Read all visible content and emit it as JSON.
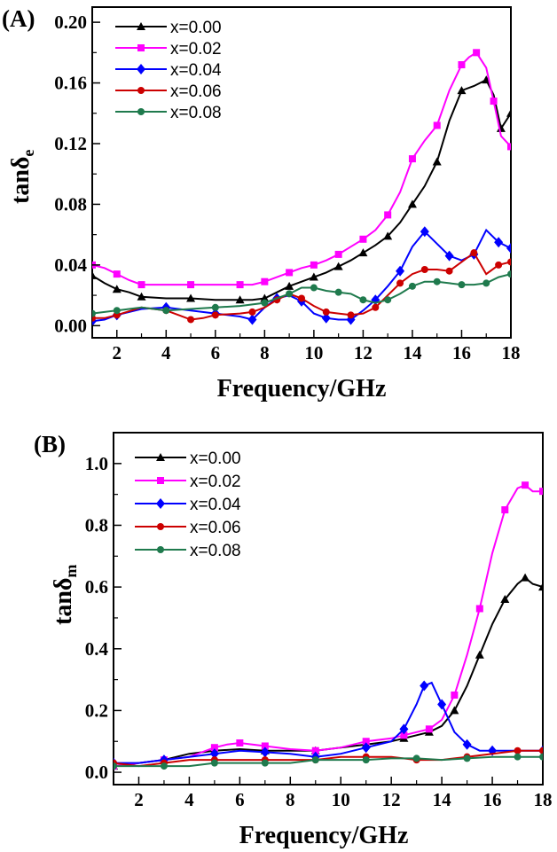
{
  "chart_data": [
    {
      "type": "line",
      "panel_label": "(A)",
      "xlabel": "Frequency/GHz",
      "ylabel_main": "tanδ",
      "ylabel_sub": "e",
      "xlim": [
        1,
        18
      ],
      "ylim": [
        -0.008,
        0.21
      ],
      "xticks": [
        2,
        4,
        6,
        8,
        10,
        12,
        14,
        16,
        18
      ],
      "yticks": [
        0.0,
        0.04,
        0.08,
        0.12,
        0.16,
        0.2
      ],
      "ytick_labels": [
        "0.00",
        "0.04",
        "0.08",
        "0.12",
        "0.16",
        "0.20"
      ],
      "legend_position": "top-left",
      "series": [
        {
          "name": "x=0.00",
          "color": "#000000",
          "marker": "triangle",
          "x": [
            1,
            1.5,
            2,
            2.5,
            3,
            4,
            5,
            6,
            7,
            7.5,
            8,
            8.5,
            9,
            9.5,
            10,
            10.5,
            11,
            11.5,
            12,
            12.5,
            13,
            13.5,
            14,
            14.5,
            15,
            15.5,
            16,
            16.5,
            17,
            17.3,
            17.6,
            18
          ],
          "y": [
            0.033,
            0.028,
            0.024,
            0.022,
            0.019,
            0.018,
            0.018,
            0.017,
            0.017,
            0.017,
            0.018,
            0.022,
            0.026,
            0.029,
            0.032,
            0.035,
            0.039,
            0.043,
            0.048,
            0.053,
            0.059,
            0.068,
            0.08,
            0.092,
            0.108,
            0.135,
            0.155,
            0.158,
            0.162,
            0.152,
            0.13,
            0.14
          ]
        },
        {
          "name": "x=0.02",
          "color": "#ff00ff",
          "marker": "square",
          "x": [
            1,
            1.5,
            2,
            2.5,
            3,
            4,
            5,
            6,
            7,
            7.5,
            8,
            8.5,
            9,
            9.5,
            10,
            10.5,
            11,
            11.5,
            12,
            12.5,
            13,
            13.5,
            14,
            14.5,
            15,
            15.5,
            16,
            16.3,
            16.6,
            17,
            17.3,
            17.6,
            18
          ],
          "y": [
            0.04,
            0.038,
            0.034,
            0.03,
            0.027,
            0.027,
            0.027,
            0.027,
            0.027,
            0.027,
            0.029,
            0.032,
            0.035,
            0.038,
            0.04,
            0.043,
            0.047,
            0.052,
            0.057,
            0.063,
            0.073,
            0.088,
            0.11,
            0.122,
            0.132,
            0.155,
            0.172,
            0.177,
            0.18,
            0.17,
            0.148,
            0.125,
            0.118
          ]
        },
        {
          "name": "x=0.04",
          "color": "#0000ff",
          "marker": "diamond",
          "x": [
            1,
            1.5,
            2,
            3,
            4,
            5,
            6,
            7,
            7.5,
            8,
            8.5,
            9,
            9.5,
            10,
            10.5,
            11,
            11.5,
            12,
            12.5,
            13,
            13.5,
            14,
            14.5,
            15,
            15.5,
            16,
            16.5,
            17,
            17.5,
            18
          ],
          "y": [
            0.003,
            0.004,
            0.007,
            0.011,
            0.012,
            0.01,
            0.008,
            0.006,
            0.004,
            0.012,
            0.018,
            0.02,
            0.016,
            0.008,
            0.005,
            0.004,
            0.004,
            0.01,
            0.017,
            0.026,
            0.036,
            0.052,
            0.062,
            0.054,
            0.046,
            0.043,
            0.047,
            0.063,
            0.055,
            0.051
          ]
        },
        {
          "name": "x=0.06",
          "color": "#cc0000",
          "marker": "circle",
          "x": [
            1,
            1.5,
            2,
            3,
            4,
            4.5,
            5,
            5.5,
            6,
            7,
            7.5,
            8,
            8.5,
            9,
            9.5,
            10,
            10.5,
            11,
            11.5,
            12,
            12.5,
            13,
            13.5,
            14,
            14.5,
            15,
            15.5,
            16,
            16.5,
            17,
            17.5,
            18
          ],
          "y": [
            0.005,
            0.005,
            0.007,
            0.012,
            0.01,
            0.007,
            0.004,
            0.005,
            0.007,
            0.008,
            0.009,
            0.012,
            0.017,
            0.021,
            0.018,
            0.013,
            0.009,
            0.008,
            0.007,
            0.008,
            0.012,
            0.02,
            0.028,
            0.034,
            0.037,
            0.037,
            0.036,
            0.042,
            0.048,
            0.034,
            0.04,
            0.042
          ]
        },
        {
          "name": "x=0.08",
          "color": "#1f7a4d",
          "marker": "circle",
          "x": [
            1,
            1.5,
            2,
            3,
            4,
            5,
            6,
            7,
            8,
            8.5,
            9,
            9.5,
            10,
            10.5,
            11,
            11.5,
            12,
            12.5,
            13,
            13.5,
            14,
            14.5,
            15,
            15.5,
            16,
            16.5,
            17,
            17.5,
            18
          ],
          "y": [
            0.008,
            0.009,
            0.01,
            0.012,
            0.01,
            0.011,
            0.012,
            0.013,
            0.015,
            0.018,
            0.021,
            0.025,
            0.025,
            0.023,
            0.022,
            0.021,
            0.017,
            0.015,
            0.017,
            0.021,
            0.026,
            0.029,
            0.029,
            0.028,
            0.027,
            0.027,
            0.028,
            0.032,
            0.034
          ]
        }
      ]
    },
    {
      "type": "line",
      "panel_label": "(B)",
      "xlabel": "Frequency/GHz",
      "ylabel_main": "tanδ",
      "ylabel_sub": "m",
      "xlim": [
        1,
        18
      ],
      "ylim": [
        -0.04,
        1.1
      ],
      "xticks": [
        2,
        4,
        6,
        8,
        10,
        12,
        14,
        16,
        18
      ],
      "yticks": [
        0.0,
        0.2,
        0.4,
        0.6,
        0.8,
        1.0
      ],
      "ytick_labels": [
        "0.0",
        "0.2",
        "0.4",
        "0.6",
        "0.8",
        "1.0"
      ],
      "legend_position": "top-left",
      "series": [
        {
          "name": "x=0.00",
          "color": "#000000",
          "marker": "triangle",
          "x": [
            1,
            2,
            3,
            4,
            5,
            6,
            7,
            8,
            9,
            10,
            11,
            12,
            12.5,
            13,
            13.5,
            14,
            14.5,
            15,
            15.5,
            16,
            16.5,
            17,
            17.3,
            17.6,
            18
          ],
          "y": [
            0.02,
            0.03,
            0.04,
            0.06,
            0.07,
            0.075,
            0.07,
            0.07,
            0.07,
            0.08,
            0.09,
            0.1,
            0.11,
            0.12,
            0.13,
            0.15,
            0.2,
            0.28,
            0.38,
            0.48,
            0.56,
            0.61,
            0.63,
            0.61,
            0.6
          ]
        },
        {
          "name": "x=0.02",
          "color": "#ff00ff",
          "marker": "square",
          "x": [
            1,
            2,
            3,
            4,
            5,
            5.5,
            6,
            6.5,
            7,
            8,
            9,
            10,
            11,
            12,
            12.5,
            13,
            13.5,
            14,
            14.5,
            15,
            15.5,
            16,
            16.5,
            17,
            17.3,
            17.6,
            18
          ],
          "y": [
            0.02,
            0.03,
            0.04,
            0.05,
            0.08,
            0.09,
            0.095,
            0.09,
            0.085,
            0.075,
            0.07,
            0.08,
            0.1,
            0.11,
            0.12,
            0.13,
            0.14,
            0.17,
            0.25,
            0.38,
            0.53,
            0.71,
            0.85,
            0.92,
            0.93,
            0.91,
            0.91
          ]
        },
        {
          "name": "x=0.04",
          "color": "#0000ff",
          "marker": "diamond",
          "x": [
            1,
            2,
            3,
            4,
            5,
            6,
            7,
            8,
            9,
            10,
            11,
            12,
            12.5,
            13,
            13.3,
            13.6,
            14,
            14.5,
            15,
            15.5,
            16,
            17,
            18
          ],
          "y": [
            0.03,
            0.03,
            0.04,
            0.05,
            0.06,
            0.07,
            0.065,
            0.06,
            0.05,
            0.06,
            0.08,
            0.1,
            0.14,
            0.22,
            0.28,
            0.29,
            0.22,
            0.13,
            0.09,
            0.07,
            0.07,
            0.07,
            0.07
          ]
        },
        {
          "name": "x=0.06",
          "color": "#cc0000",
          "marker": "circle",
          "x": [
            1,
            2,
            3,
            4,
            5,
            6,
            7,
            8,
            9,
            10,
            11,
            12,
            13,
            14,
            15,
            16,
            17,
            18
          ],
          "y": [
            0.03,
            0.02,
            0.03,
            0.04,
            0.04,
            0.04,
            0.04,
            0.04,
            0.04,
            0.05,
            0.05,
            0.05,
            0.04,
            0.04,
            0.05,
            0.06,
            0.07,
            0.07
          ]
        },
        {
          "name": "x=0.08",
          "color": "#1f7a4d",
          "marker": "circle",
          "x": [
            1,
            2,
            3,
            4,
            5,
            6,
            7,
            8,
            9,
            10,
            11,
            12,
            13,
            14,
            15,
            16,
            17,
            18
          ],
          "y": [
            0.02,
            0.02,
            0.02,
            0.02,
            0.03,
            0.03,
            0.03,
            0.03,
            0.04,
            0.04,
            0.04,
            0.045,
            0.045,
            0.04,
            0.045,
            0.05,
            0.05,
            0.05
          ]
        }
      ]
    }
  ]
}
